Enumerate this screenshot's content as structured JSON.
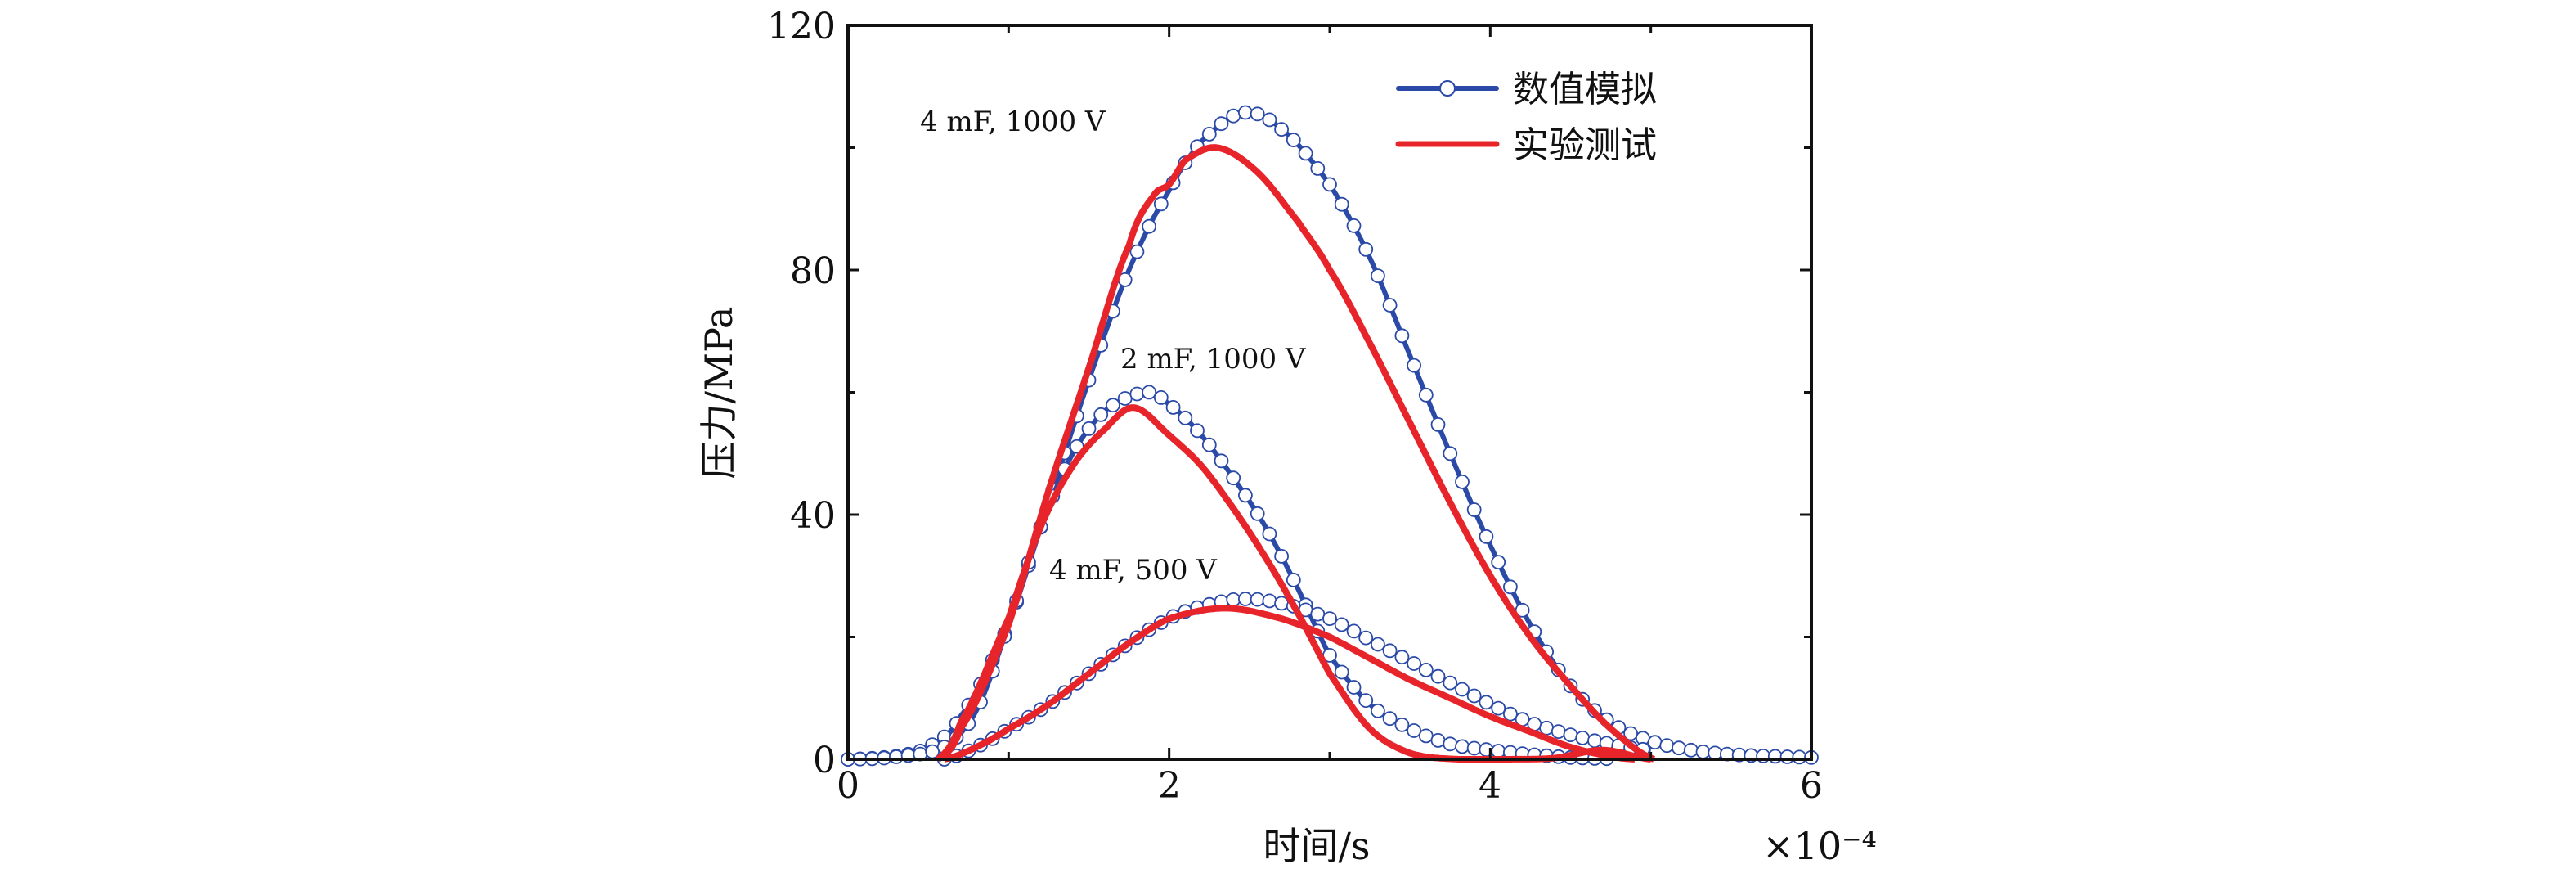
{
  "chart_data": {
    "type": "line",
    "title": "",
    "xlabel": "时间/s",
    "ylabel": "压力/MPa",
    "x_multiplier_label": "×10⁻⁴",
    "xlim": [
      0,
      6
    ],
    "ylim": [
      0,
      120
    ],
    "xticks": [
      0,
      2,
      4,
      6
    ],
    "xtick_labels": [
      "0",
      "2",
      "4",
      "6"
    ],
    "yticks": [
      0,
      40,
      80,
      120
    ],
    "ytick_labels": [
      "0",
      "40",
      "80",
      "120"
    ],
    "grid": false,
    "legend_position": "top-right",
    "legend": [
      {
        "label": "数值模拟",
        "color": "#2b4aa8",
        "marker": "open-circle"
      },
      {
        "label": "实验测试",
        "color": "#e8242b",
        "marker": "none"
      }
    ],
    "annotations": [
      {
        "text": "4 mF, 1000 V",
        "x": 0.45,
        "y": 103
      },
      {
        "text": "2 mF, 1000 V",
        "x": 1.7,
        "y": 64
      },
      {
        "text": "4 mF, 500 V",
        "x": 1.3,
        "y": 30
      }
    ],
    "series": [
      {
        "name": "数值模拟 4 mF, 1000 V",
        "kind": "simulation",
        "color": "#2b4aa8",
        "x": [
          0,
          0.3,
          0.5,
          0.7,
          1.0,
          1.25,
          1.5,
          1.75,
          2.0,
          2.2,
          2.46,
          2.7,
          3.0,
          3.25,
          3.5,
          3.75,
          4.0,
          4.25,
          4.5,
          4.75,
          5.0,
          5.25,
          5.5,
          5.75,
          6.0
        ],
        "y": [
          0,
          0.5,
          2,
          7,
          22,
          42,
          62,
          80,
          93,
          101,
          105.7,
          103,
          94,
          82,
          66,
          50,
          35,
          22,
          12,
          6,
          3,
          1.5,
          0.8,
          0.5,
          0.3
        ]
      },
      {
        "name": "实验测试 4 mF, 1000 V",
        "kind": "experiment",
        "color": "#e8242b",
        "x": [
          0.56,
          0.7,
          1.0,
          1.25,
          1.5,
          1.75,
          1.9,
          2.0,
          2.1,
          2.3,
          2.55,
          2.8,
          3.0,
          3.25,
          3.5,
          3.75,
          4.0,
          4.25,
          4.5,
          4.75,
          5.02
        ],
        "y": [
          0,
          5,
          22,
          44,
          64,
          84,
          92,
          94,
          98,
          100,
          96,
          88,
          80,
          68,
          55,
          42,
          30,
          20,
          12,
          5,
          0
        ]
      },
      {
        "name": "数值模拟 2 mF, 1000 V",
        "kind": "simulation",
        "color": "#2b4aa8",
        "x": [
          0,
          0.3,
          0.6,
          0.8,
          1.0,
          1.2,
          1.4,
          1.6,
          1.86,
          2.0,
          2.2,
          2.4,
          2.6,
          2.8,
          3.0,
          3.25,
          3.5,
          3.75,
          4.0,
          4.25,
          4.5,
          4.75
        ],
        "y": [
          0,
          0.4,
          2,
          8,
          22,
          38,
          50,
          57,
          60,
          58,
          53,
          46,
          38,
          28,
          17,
          9,
          5,
          2.5,
          1.5,
          0.8,
          0.3,
          0.1
        ]
      },
      {
        "name": "实验测试 2 mF, 1000 V",
        "kind": "experiment",
        "color": "#e8242b",
        "x": [
          0.56,
          0.7,
          1.0,
          1.2,
          1.4,
          1.6,
          1.78,
          2.0,
          2.2,
          2.4,
          2.6,
          2.8,
          3.0,
          3.25,
          3.5,
          3.8,
          4.1,
          4.4,
          4.7,
          5.0
        ],
        "y": [
          0,
          6,
          23,
          38,
          48,
          54,
          57.5,
          53,
          48,
          41,
          33,
          24,
          14,
          5,
          1,
          0,
          0,
          0.2,
          1.5,
          0
        ]
      },
      {
        "name": "数值模拟 4 mF, 500 V",
        "kind": "simulation",
        "color": "#2b4aa8",
        "x": [
          0.6,
          0.8,
          1.0,
          1.25,
          1.5,
          1.75,
          2.0,
          2.2,
          2.45,
          2.7,
          3.0,
          3.25,
          3.5,
          3.75,
          4.0,
          4.25,
          4.5,
          4.75,
          5.0
        ],
        "y": [
          0,
          2,
          5,
          9,
          14,
          19,
          23,
          25,
          26.2,
          25.5,
          23,
          19.5,
          16,
          12.5,
          9,
          6,
          4,
          2.5,
          1.5
        ]
      },
      {
        "name": "实验测试 4 mF, 500 V",
        "kind": "experiment",
        "color": "#e8242b",
        "x": [
          0.6,
          0.8,
          1.0,
          1.25,
          1.5,
          1.75,
          2.0,
          2.35,
          2.7,
          3.0,
          3.25,
          3.5,
          3.75,
          4.0,
          4.25,
          4.5,
          4.75,
          4.9
        ],
        "y": [
          0,
          2,
          5,
          9,
          14,
          19,
          23,
          24.7,
          23,
          20,
          16.5,
          13,
          10,
          7,
          4.5,
          2,
          0.5,
          0
        ]
      }
    ]
  }
}
